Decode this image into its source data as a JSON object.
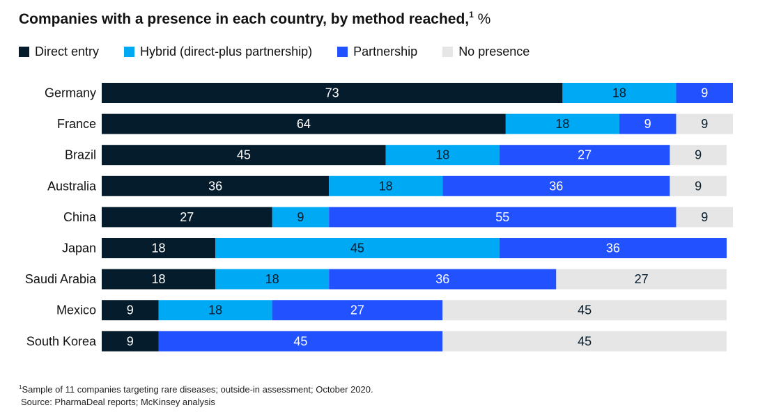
{
  "chart_data": {
    "type": "bar",
    "orientation": "horizontal",
    "stacked": true,
    "title": "Companies with a presence in each country, by method reached,",
    "title_footnote_marker": "1",
    "unit": "%",
    "categories": [
      "Germany",
      "France",
      "Brazil",
      "Australia",
      "China",
      "Japan",
      "Saudi Arabia",
      "Mexico",
      "South Korea"
    ],
    "series": [
      {
        "name": "Direct entry",
        "color": "#051c2c",
        "label_color": "#ffffff",
        "values": [
          73,
          64,
          45,
          36,
          27,
          18,
          18,
          9,
          9
        ]
      },
      {
        "name": "Hybrid (direct-plus partnership)",
        "color": "#00a9f4",
        "label_color": "#051c2c",
        "values": [
          18,
          18,
          18,
          18,
          9,
          45,
          18,
          18,
          0
        ]
      },
      {
        "name": "Partnership",
        "color": "#2251ff",
        "label_color": "#ffffff",
        "values": [
          9,
          9,
          27,
          36,
          55,
          36,
          36,
          27,
          45
        ]
      },
      {
        "name": "No presence",
        "color": "#e6e6e6",
        "label_color": "#051c2c",
        "values": [
          0,
          9,
          9,
          9,
          9,
          0,
          27,
          45,
          45
        ]
      }
    ],
    "legend_position": "top-left",
    "grid": false
  },
  "footnote": {
    "marker": "1",
    "text": "Sample of 11 companies targeting rare diseases; outside-in assessment; October 2020.",
    "source": "Source: PharmaDeal reports; McKinsey analysis"
  }
}
